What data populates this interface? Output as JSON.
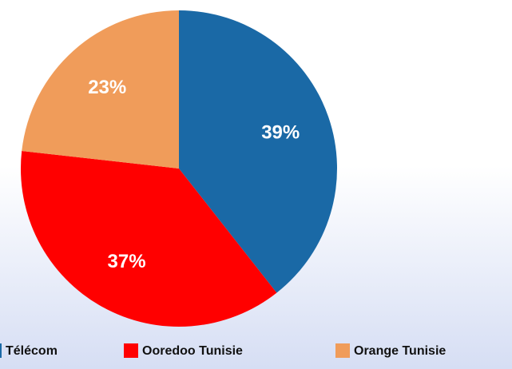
{
  "chart_data": {
    "type": "pie",
    "categories": [
      "Télécom",
      "Ooredoo Tunisie",
      "Orange Tunisie"
    ],
    "values": [
      39,
      37,
      23
    ],
    "value_labels": [
      "39%",
      "37%",
      "23%"
    ],
    "colors": [
      "#1a69a6",
      "#ff0000",
      "#f09c5a"
    ]
  }
}
